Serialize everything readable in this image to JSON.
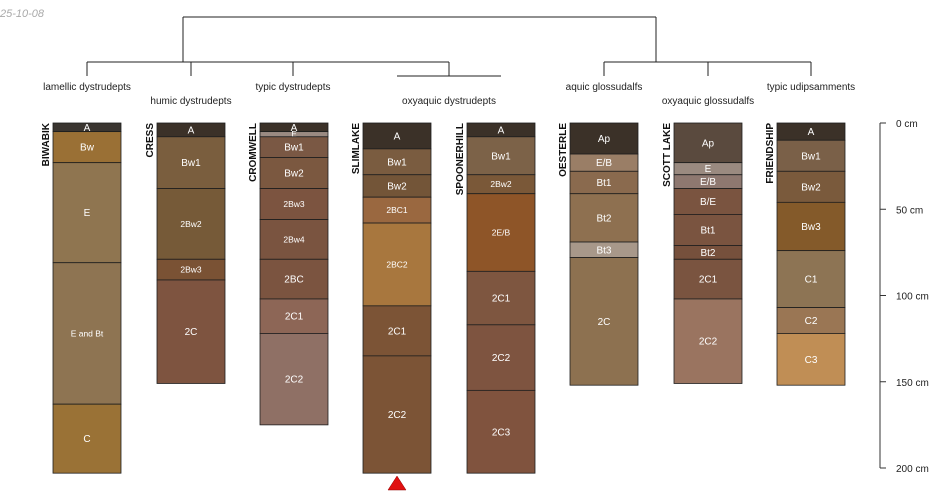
{
  "date_label": "25-10-08",
  "taxa": [
    {
      "name": "lamellic dystrudepts"
    },
    {
      "name": "humic dystrudepts"
    },
    {
      "name": "typic dystrudepts"
    },
    {
      "name": "oxyaquic dystrudepts"
    },
    {
      "name": "aquic glossudalfs"
    },
    {
      "name": "oxyaquic glossudalfs"
    },
    {
      "name": "typic udipsamments"
    }
  ],
  "depth_axis": {
    "ticks": [
      {
        "value": 0,
        "label": "0 cm"
      },
      {
        "value": 50,
        "label": "50 cm"
      },
      {
        "value": 100,
        "label": "100 cm"
      },
      {
        "value": 150,
        "label": "150 cm"
      },
      {
        "value": 200,
        "label": "200 cm"
      }
    ]
  },
  "profiles": [
    {
      "name": "BIWABIK",
      "horizons": [
        {
          "name": "A",
          "top": 0,
          "bottom": 5,
          "color": "#3a3530"
        },
        {
          "name": "Bw",
          "top": 5,
          "bottom": 23,
          "color": "#9a7035"
        },
        {
          "name": "E",
          "top": 23,
          "bottom": 81,
          "color": "#8f7550"
        },
        {
          "name": "E and Bt",
          "top": 81,
          "bottom": 163,
          "color": "#8e7452"
        },
        {
          "name": "C",
          "top": 163,
          "bottom": 203,
          "color": "#9a7236"
        }
      ]
    },
    {
      "name": "CRESS",
      "horizons": [
        {
          "name": "A",
          "top": 0,
          "bottom": 8,
          "color": "#3b3128"
        },
        {
          "name": "Bw1",
          "top": 8,
          "bottom": 38,
          "color": "#7a5e3e"
        },
        {
          "name": "2Bw2",
          "top": 38,
          "bottom": 79,
          "color": "#765a38"
        },
        {
          "name": "2Bw3",
          "top": 79,
          "bottom": 91,
          "color": "#7a5234"
        },
        {
          "name": "2C",
          "top": 91,
          "bottom": 151,
          "color": "#7e5440"
        }
      ]
    },
    {
      "name": "CROMWELL",
      "horizons": [
        {
          "name": "A",
          "top": 0,
          "bottom": 5,
          "color": "#3b3128"
        },
        {
          "name": "E",
          "top": 5,
          "bottom": 8,
          "color": "#9a8a82"
        },
        {
          "name": "Bw1",
          "top": 8,
          "bottom": 20,
          "color": "#7a5844"
        },
        {
          "name": "Bw2",
          "top": 20,
          "bottom": 38,
          "color": "#7b5840"
        },
        {
          "name": "2Bw3",
          "top": 38,
          "bottom": 56,
          "color": "#7c5440"
        },
        {
          "name": "2Bw4",
          "top": 56,
          "bottom": 79,
          "color": "#7a5440"
        },
        {
          "name": "2BC",
          "top": 79,
          "bottom": 102,
          "color": "#7b5440"
        },
        {
          "name": "2C1",
          "top": 102,
          "bottom": 122,
          "color": "#8d6656"
        },
        {
          "name": "2C2",
          "top": 122,
          "bottom": 175,
          "color": "#8f7065"
        }
      ]
    },
    {
      "name": "SLIMLAKE",
      "horizons": [
        {
          "name": "A",
          "top": 0,
          "bottom": 15,
          "color": "#3b3128"
        },
        {
          "name": "Bw1",
          "top": 15,
          "bottom": 30,
          "color": "#7a5c40"
        },
        {
          "name": "Bw2",
          "top": 30,
          "bottom": 43,
          "color": "#735538"
        },
        {
          "name": "2BC1",
          "top": 43,
          "bottom": 58,
          "color": "#9a6840"
        },
        {
          "name": "2BC2",
          "top": 58,
          "bottom": 106,
          "color": "#a8773e"
        },
        {
          "name": "2C1",
          "top": 106,
          "bottom": 135,
          "color": "#7c5436"
        },
        {
          "name": "2C2",
          "top": 135,
          "bottom": 203,
          "color": "#7c5436"
        }
      ]
    },
    {
      "name": "SPOONERHILL",
      "horizons": [
        {
          "name": "A",
          "top": 0,
          "bottom": 8,
          "color": "#3b3128"
        },
        {
          "name": "Bw1",
          "top": 8,
          "bottom": 30,
          "color": "#7c6248"
        },
        {
          "name": "2Bw2",
          "top": 30,
          "bottom": 41,
          "color": "#7a5838"
        },
        {
          "name": "2E/B",
          "top": 41,
          "bottom": 86,
          "color": "#8e5528"
        },
        {
          "name": "2C1",
          "top": 86,
          "bottom": 117,
          "color": "#7e5640"
        },
        {
          "name": "2C2",
          "top": 117,
          "bottom": 155,
          "color": "#7e5440"
        },
        {
          "name": "2C3",
          "top": 155,
          "bottom": 203,
          "color": "#80533e"
        }
      ]
    },
    {
      "name": "OESTERLE",
      "horizons": [
        {
          "name": "Ap",
          "top": 0,
          "bottom": 18,
          "color": "#3b3128"
        },
        {
          "name": "E/B",
          "top": 18,
          "bottom": 28,
          "color": "#9a7e66"
        },
        {
          "name": "Bt1",
          "top": 28,
          "bottom": 41,
          "color": "#8a6a4e"
        },
        {
          "name": "Bt2",
          "top": 41,
          "bottom": 69,
          "color": "#8e7050"
        },
        {
          "name": "Bt3",
          "top": 69,
          "bottom": 78,
          "color": "#a8988a"
        },
        {
          "name": "2C",
          "top": 78,
          "bottom": 152,
          "color": "#8d7150"
        }
      ]
    },
    {
      "name": "SCOTT LAKE",
      "horizons": [
        {
          "name": "Ap",
          "top": 0,
          "bottom": 23,
          "color": "#5a4a3e"
        },
        {
          "name": "E",
          "top": 23,
          "bottom": 30,
          "color": "#9a8a80"
        },
        {
          "name": "E/B",
          "top": 30,
          "bottom": 38,
          "color": "#8e7870"
        },
        {
          "name": "B/E",
          "top": 38,
          "bottom": 53,
          "color": "#7a5440"
        },
        {
          "name": "Bt1",
          "top": 53,
          "bottom": 71,
          "color": "#7a5440"
        },
        {
          "name": "Bt2",
          "top": 71,
          "bottom": 79,
          "color": "#76503c"
        },
        {
          "name": "2C1",
          "top": 79,
          "bottom": 102,
          "color": "#7a5440"
        },
        {
          "name": "2C2",
          "top": 102,
          "bottom": 151,
          "color": "#9a7460"
        }
      ]
    },
    {
      "name": "FRIENDSHIP",
      "horizons": [
        {
          "name": "A",
          "top": 0,
          "bottom": 10,
          "color": "#3b3128"
        },
        {
          "name": "Bw1",
          "top": 10,
          "bottom": 28,
          "color": "#7a6048"
        },
        {
          "name": "Bw2",
          "top": 28,
          "bottom": 46,
          "color": "#7a5a3c"
        },
        {
          "name": "Bw3",
          "top": 46,
          "bottom": 74,
          "color": "#845a2a"
        },
        {
          "name": "C1",
          "top": 74,
          "bottom": 107,
          "color": "#8d7454"
        },
        {
          "name": "C2",
          "top": 107,
          "bottom": 122,
          "color": "#9a7654"
        },
        {
          "name": "C3",
          "top": 122,
          "bottom": 152,
          "color": "#c08e55"
        }
      ]
    }
  ]
}
